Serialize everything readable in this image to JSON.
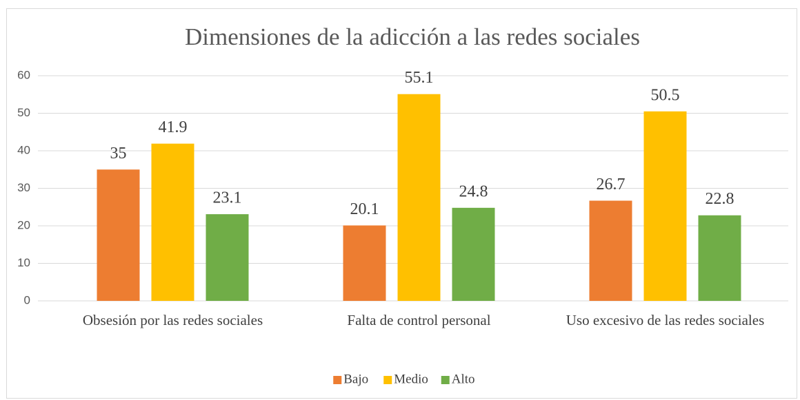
{
  "chart_data": {
    "type": "bar",
    "title": "Dimensiones de la adicción a las redes sociales",
    "categories": [
      "Obsesión por las redes sociales",
      "Falta de control personal",
      "Uso excesivo de las redes sociales"
    ],
    "series": [
      {
        "name": "Bajo",
        "color": "#ed7d31",
        "values": [
          35,
          20.1,
          26.7
        ]
      },
      {
        "name": "Medio",
        "color": "#ffc000",
        "values": [
          41.9,
          55.1,
          50.5
        ]
      },
      {
        "name": "Alto",
        "color": "#70ad47",
        "values": [
          23.1,
          24.8,
          22.8
        ]
      }
    ],
    "ylim": [
      0,
      60
    ],
    "yticks": [
      0,
      10,
      20,
      30,
      40,
      50,
      60
    ],
    "grid": true,
    "legend": "bottom"
  }
}
